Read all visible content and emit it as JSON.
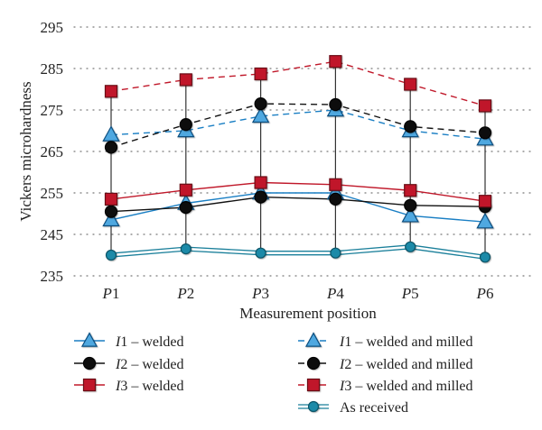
{
  "chart_data": {
    "type": "line",
    "title": "",
    "xlabel": "Measurement position",
    "ylabel": "Vickers microhardness",
    "categories": [
      {
        "prefix": "P",
        "num": "1"
      },
      {
        "prefix": "P",
        "num": "2"
      },
      {
        "prefix": "P",
        "num": "3"
      },
      {
        "prefix": "P",
        "num": "4"
      },
      {
        "prefix": "P",
        "num": "5"
      },
      {
        "prefix": "P",
        "num": "6"
      }
    ],
    "ylim": [
      235,
      295
    ],
    "yticks": [
      235,
      245,
      255,
      265,
      275,
      285,
      295
    ],
    "grid": "dotted horizontal",
    "legend_position": "bottom, two columns",
    "series": [
      {
        "id": "i1w",
        "prefix": "I",
        "num": "1",
        "suffix": " – welded",
        "marker": "triangle",
        "color": "#1a7fc4",
        "fill": "#4fa8e0",
        "dash": "solid",
        "values": [
          248.5,
          252.5,
          255.0,
          255.0,
          249.5,
          248.0
        ]
      },
      {
        "id": "i2w",
        "prefix": "I",
        "num": "2",
        "suffix": " – welded",
        "marker": "circle",
        "color": "#111111",
        "fill": "#111111",
        "dash": "solid",
        "values": [
          250.5,
          251.5,
          254.0,
          253.5,
          252.0,
          251.7
        ]
      },
      {
        "id": "i3w",
        "prefix": "I",
        "num": "3",
        "suffix": " – welded",
        "marker": "square",
        "color": "#c0182a",
        "fill": "#c0182a",
        "dash": "solid",
        "values": [
          253.5,
          255.7,
          257.5,
          257.0,
          255.6,
          253.0
        ]
      },
      {
        "id": "i1wm",
        "prefix": "I",
        "num": "1",
        "suffix": " – welded and milled",
        "marker": "triangle",
        "color": "#1a7fc4",
        "fill": "#4fa8e0",
        "dash": "dashed",
        "values": [
          269.0,
          270.0,
          273.5,
          275.0,
          270.0,
          268.0
        ]
      },
      {
        "id": "i2wm",
        "prefix": "I",
        "num": "2",
        "suffix": " – welded and milled",
        "marker": "circle",
        "color": "#111111",
        "fill": "#111111",
        "dash": "dashed",
        "values": [
          266.0,
          271.5,
          276.5,
          276.3,
          271.0,
          269.5
        ]
      },
      {
        "id": "i3wm",
        "prefix": "I",
        "num": "3",
        "suffix": " – welded and milled",
        "marker": "square",
        "color": "#c0182a",
        "fill": "#c0182a",
        "dash": "dashed",
        "values": [
          279.5,
          282.3,
          283.7,
          286.7,
          281.2,
          276.0
        ]
      },
      {
        "id": "asr",
        "prefix": "",
        "num": "",
        "suffix": "As received",
        "marker": "circle",
        "color": "#1a7f9a",
        "fill": "#1a8aa8",
        "dash": "double",
        "values": [
          240.0,
          241.5,
          240.5,
          240.5,
          242.0,
          239.5
        ]
      }
    ]
  }
}
